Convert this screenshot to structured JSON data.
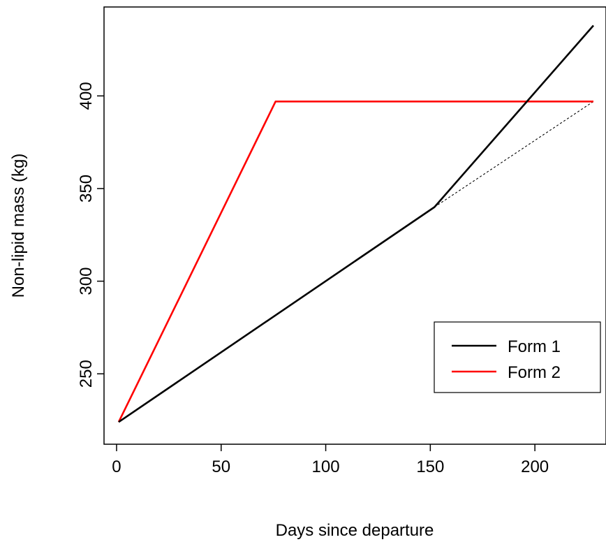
{
  "chart_data": {
    "type": "line",
    "title": "",
    "xlabel": "Days since departure",
    "ylabel": "Non-lipid mass (kg)",
    "xlim": [
      -6,
      234
    ],
    "ylim": [
      212,
      448
    ],
    "xticks": [
      0,
      50,
      100,
      150,
      200
    ],
    "yticks": [
      250,
      300,
      350,
      400
    ],
    "grid": false,
    "legend_position": "bottom-right",
    "series": [
      {
        "name": "Form 1",
        "color": "#000000",
        "style": "solid",
        "x": [
          1,
          152,
          228
        ],
        "y": [
          224,
          340,
          438
        ]
      },
      {
        "name": "Form 2",
        "color": "#ff0000",
        "style": "solid",
        "x": [
          1,
          76,
          228
        ],
        "y": [
          224,
          397,
          397
        ]
      },
      {
        "color": "#000000",
        "style": "dotted",
        "x": [
          152,
          228
        ],
        "y": [
          340,
          397
        ]
      }
    ]
  }
}
